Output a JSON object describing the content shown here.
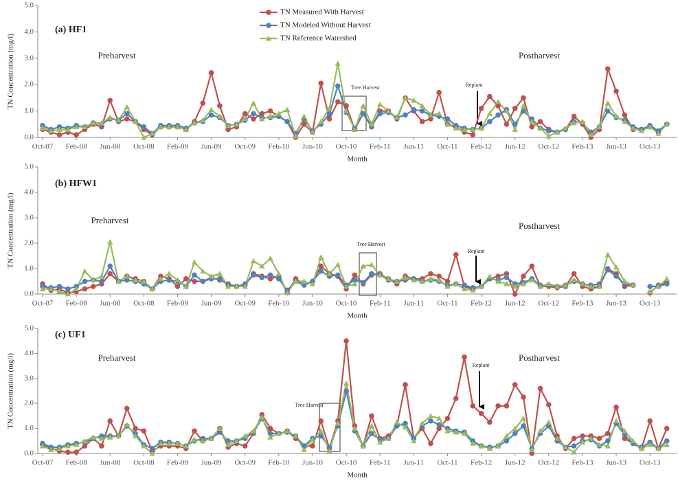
{
  "chart_data": [
    {
      "type": "line",
      "title": "(a) HF1",
      "x_label": "Month",
      "y_label": "TN Concentration (mg/l)",
      "legend": true,
      "annotations": [
        "Preharvest",
        "Postharvest",
        "Tree Harvest",
        "Replant"
      ],
      "ylim": [
        0,
        5
      ],
      "yticks": [
        {
          "value": 0,
          "label": "0.0"
        },
        {
          "value": 1,
          "label": "1.0"
        },
        {
          "value": 2,
          "label": "2.0"
        },
        {
          "value": 3,
          "label": "3.0"
        },
        {
          "value": 4,
          "label": "4.0"
        },
        {
          "value": 5,
          "label": "5.0"
        }
      ],
      "categories": [
        "Oct-07",
        null,
        null,
        null,
        "Feb-08",
        null,
        null,
        null,
        "Jun-08",
        null,
        null,
        null,
        "Oct-08",
        null,
        null,
        null,
        "Feb-09",
        null,
        null,
        null,
        "Jun-09",
        null,
        null,
        null,
        "Oct-09",
        null,
        null,
        null,
        "Feb-10",
        null,
        null,
        null,
        "Jun-10",
        null,
        null,
        null,
        "Oct-10",
        null,
        null,
        null,
        "Feb-11",
        null,
        null,
        null,
        "Jun-11",
        null,
        null,
        null,
        "Oct-11",
        null,
        null,
        null,
        "Feb-12",
        null,
        null,
        null,
        "Jun-12",
        null,
        null,
        null,
        "Oct-12",
        null,
        null,
        null,
        "Feb-13",
        null,
        null,
        null,
        "Jun-13",
        null,
        null,
        null,
        "Oct-13",
        null,
        null
      ],
      "series": [
        {
          "name": "TN Measured With Harvest",
          "color": "#c0504d",
          "marker": "circle",
          "values": [
            0.3,
            0.2,
            0.1,
            0.2,
            0.1,
            0.3,
            0.5,
            0.4,
            1.4,
            0.6,
            0.7,
            0.6,
            0.3,
            0.1,
            0.4,
            0.4,
            0.4,
            0.3,
            0.6,
            1.3,
            2.45,
            1.2,
            0.3,
            0.4,
            0.9,
            0.7,
            0.9,
            1.0,
            0.8,
            0.6,
            0.0,
            0.5,
            0.2,
            2.05,
            0.7,
            1.35,
            1.2,
            0.3,
            0.9,
            0.4,
            1.0,
            1.0,
            0.7,
            1.5,
            1.0,
            0.6,
            0.7,
            1.7,
            0.5,
            0.4,
            0.2,
            0.1,
            1.1,
            1.55,
            1.2,
            0.5,
            1.1,
            1.5,
            0.4,
            0.6,
            0.3,
            0.2,
            0.3,
            0.8,
            0.5,
            0.0,
            0.3,
            2.6,
            1.75,
            0.85,
            0.3,
            0.3,
            0.4,
            0.2,
            0.5
          ]
        },
        {
          "name": "TN Modeled Without Harvest",
          "color": "#4f81bd",
          "marker": "circle",
          "values": [
            0.45,
            0.3,
            0.4,
            0.35,
            0.45,
            0.4,
            0.55,
            0.5,
            0.7,
            0.65,
            0.9,
            0.6,
            0.4,
            0.15,
            0.45,
            0.45,
            0.45,
            0.35,
            0.55,
            0.6,
            0.85,
            0.75,
            0.45,
            0.5,
            0.65,
            0.9,
            0.75,
            0.75,
            0.8,
            0.6,
            0.15,
            0.7,
            0.25,
            0.5,
            0.9,
            1.95,
            0.95,
            0.35,
            0.9,
            0.45,
            0.9,
            0.95,
            0.75,
            0.85,
            1.05,
            1.0,
            0.85,
            0.8,
            0.7,
            0.45,
            0.35,
            0.3,
            0.35,
            0.6,
            0.85,
            1.05,
            0.5,
            1.0,
            0.7,
            0.35,
            0.25,
            0.2,
            0.3,
            0.6,
            0.55,
            0.2,
            0.4,
            1.0,
            0.75,
            0.65,
            0.4,
            0.3,
            0.45,
            0.25,
            0.5
          ]
        },
        {
          "name": "TN Reference Watershed",
          "color": "#9bbb59",
          "marker": "triangle",
          "values": [
            0.35,
            0.25,
            0.3,
            0.3,
            0.4,
            0.4,
            0.55,
            0.55,
            0.75,
            0.65,
            1.15,
            0.6,
            0.0,
            0.15,
            0.4,
            0.4,
            0.4,
            0.3,
            0.55,
            0.65,
            1.05,
            0.8,
            0.45,
            0.5,
            0.7,
            1.3,
            0.7,
            0.8,
            0.9,
            1.05,
            0.05,
            0.8,
            0.2,
            0.6,
            1.1,
            2.8,
            1.0,
            0.3,
            1.2,
            0.5,
            1.25,
            1.0,
            0.75,
            1.5,
            1.4,
            1.2,
            0.85,
            0.9,
            0.5,
            0.35,
            0.3,
            0.3,
            0.35,
            0.9,
            1.35,
            1.0,
            0.3,
            1.2,
            0.6,
            0.35,
            0.05,
            0.2,
            0.35,
            0.55,
            0.6,
            0.1,
            0.4,
            1.3,
            0.8,
            0.6,
            0.35,
            0.25,
            0.4,
            0.15,
            0.5
          ]
        }
      ]
    },
    {
      "type": "line",
      "title": "(b) HFW1",
      "x_label": "Month",
      "y_label": "TN Concentration (mg/l)",
      "legend": false,
      "annotations": [
        "Preharvest",
        "Postharvest",
        "Tree Harvest",
        "Replant"
      ],
      "ylim": [
        0,
        5
      ],
      "yticks": [
        {
          "value": 0,
          "label": "0.0"
        },
        {
          "value": 1,
          "label": "1.0"
        },
        {
          "value": 2,
          "label": "2.0"
        },
        {
          "value": 3,
          "label": "3.0"
        },
        {
          "value": 4,
          "label": "4.0"
        },
        {
          "value": 5,
          "label": "5.0"
        }
      ],
      "categories": [
        "Oct-07",
        null,
        null,
        null,
        "Feb-08",
        null,
        null,
        null,
        "Jun-08",
        null,
        null,
        null,
        "Oct-08",
        null,
        null,
        null,
        "Feb-09",
        null,
        null,
        null,
        "Jun-09",
        null,
        null,
        null,
        "Oct-09",
        null,
        null,
        null,
        "Feb-10",
        null,
        null,
        null,
        "Jun-10",
        null,
        null,
        null,
        "Oct-10",
        null,
        null,
        null,
        "Feb-11",
        null,
        null,
        null,
        "Jun-11",
        null,
        null,
        null,
        "Oct-11",
        null,
        null,
        null,
        "Feb-12",
        null,
        null,
        null,
        "Jun-12",
        null,
        null,
        null,
        "Oct-12",
        null,
        null,
        null,
        "Feb-13",
        null,
        null,
        null,
        "Jun-13",
        null,
        null,
        null,
        "Oct-13",
        null,
        null
      ],
      "series": [
        {
          "color": "#c0504d",
          "marker": "circle",
          "values": [
            0.4,
            0.15,
            0.2,
            0.05,
            0.1,
            0.2,
            0.3,
            0.4,
            0.8,
            0.5,
            0.7,
            0.6,
            0.5,
            0.2,
            0.7,
            0.6,
            0.3,
            0.6,
            0.5,
            0.5,
            0.65,
            0.55,
            0.4,
            0.3,
            0.35,
            0.8,
            0.7,
            0.6,
            0.7,
            0.05,
            0.6,
            0.4,
            0.5,
            1.1,
            0.8,
            0.7,
            0.2,
            0.75,
            0.4,
            0.75,
            0.8,
            0.6,
            0.4,
            0.7,
            0.6,
            0.6,
            0.8,
            0.7,
            0.5,
            1.55,
            0.3,
            0.2,
            0.3,
            0.6,
            0.7,
            0.8,
            0.0,
            0.7,
            1.1,
            0.3,
            0.3,
            0.25,
            0.3,
            0.8,
            0.3,
            0.2,
            0.3,
            1.0,
            0.8,
            0.3,
            0.35,
            null,
            0.05,
            0.35,
            0.45
          ]
        },
        {
          "color": "#4f81bd",
          "marker": "circle",
          "values": [
            0.3,
            0.25,
            0.3,
            0.2,
            0.3,
            0.5,
            0.55,
            0.5,
            1.1,
            0.5,
            0.55,
            0.5,
            0.4,
            0.2,
            0.5,
            0.55,
            0.5,
            0.3,
            0.75,
            0.5,
            0.6,
            0.6,
            0.35,
            0.3,
            0.4,
            0.75,
            0.65,
            0.75,
            0.6,
            0.15,
            0.5,
            0.35,
            0.5,
            0.9,
            0.7,
            0.75,
            0.35,
            0.55,
            0.45,
            0.8,
            0.75,
            0.55,
            0.5,
            0.55,
            0.6,
            0.5,
            0.55,
            0.5,
            0.35,
            0.4,
            0.35,
            0.25,
            0.3,
            0.6,
            0.55,
            0.65,
            0.4,
            0.45,
            0.6,
            0.35,
            0.35,
            0.3,
            0.35,
            0.5,
            0.4,
            0.35,
            0.4,
            0.95,
            0.7,
            0.4,
            0.35,
            null,
            0.3,
            0.3,
            0.4
          ]
        },
        {
          "color": "#9bbb59",
          "marker": "triangle",
          "values": [
            0.2,
            0.2,
            0.1,
            0.0,
            0.2,
            0.9,
            0.55,
            0.7,
            2.05,
            0.5,
            0.7,
            0.55,
            0.5,
            0.2,
            0.6,
            0.8,
            0.55,
            0.3,
            1.25,
            0.9,
            0.7,
            0.8,
            0.3,
            0.3,
            0.3,
            1.3,
            1.1,
            1.4,
            0.8,
            0.05,
            0.5,
            0.5,
            0.4,
            1.45,
            0.8,
            1.15,
            0.3,
            0.4,
            1.1,
            1.15,
            0.75,
            0.6,
            0.5,
            0.65,
            0.55,
            0.5,
            0.6,
            0.55,
            0.3,
            0.4,
            0.2,
            0.15,
            0.3,
            0.7,
            0.5,
            0.4,
            0.3,
            0.4,
            0.55,
            0.3,
            0.4,
            0.3,
            0.35,
            0.55,
            0.4,
            0.3,
            0.3,
            1.55,
            1.05,
            0.5,
            0.35,
            null,
            0.1,
            0.3,
            0.6
          ]
        }
      ]
    },
    {
      "type": "line",
      "title": "(c) UF1",
      "x_label": "Month",
      "y_label": "TN Concentration (mg/l)",
      "legend": false,
      "annotations": [
        "Preharvest",
        "Postharvest",
        "Tree Harvest",
        "Replant"
      ],
      "ylim": [
        0,
        5
      ],
      "yticks": [
        {
          "value": 0,
          "label": "0.0"
        },
        {
          "value": 1,
          "label": "1.0"
        },
        {
          "value": 2,
          "label": "2.0"
        },
        {
          "value": 3,
          "label": "3.0"
        },
        {
          "value": 4,
          "label": "4.0"
        },
        {
          "value": 5,
          "label": "5.0"
        }
      ],
      "categories": [
        "Oct-07",
        null,
        null,
        null,
        "Feb-08",
        null,
        null,
        null,
        "Jun-08",
        null,
        null,
        null,
        "Oct-08",
        null,
        null,
        null,
        "Feb-09",
        null,
        null,
        null,
        "Jun-09",
        null,
        null,
        null,
        "Oct-09",
        null,
        null,
        null,
        "Feb-10",
        null,
        null,
        null,
        "Jun-10",
        null,
        null,
        null,
        "Oct-10",
        null,
        null,
        null,
        "Feb-11",
        null,
        null,
        null,
        "Jun-11",
        null,
        null,
        null,
        "Oct-11",
        null,
        null,
        null,
        "Feb-12",
        null,
        null,
        null,
        "Jun-12",
        null,
        null,
        null,
        "Oct-12",
        null,
        null,
        null,
        "Feb-13",
        null,
        null,
        null,
        "Jun-13",
        null,
        null,
        null,
        "Oct-13",
        null,
        null
      ],
      "series": [
        {
          "color": "#c0504d",
          "marker": "circle",
          "values": [
            0.35,
            0.2,
            0.1,
            0.05,
            0.05,
            0.3,
            0.6,
            0.3,
            1.3,
            0.7,
            1.8,
            1.0,
            0.9,
            0.1,
            0.3,
            0.3,
            0.3,
            0.2,
            0.9,
            0.5,
            0.6,
            1.0,
            0.25,
            0.4,
            0.3,
            0.8,
            1.55,
            1.0,
            0.8,
            0.9,
            0.6,
            0.3,
            0.3,
            1.3,
            0.2,
            1.3,
            4.5,
            1.1,
            0.3,
            1.5,
            0.6,
            0.7,
            1.1,
            2.75,
            0.6,
            1.0,
            0.4,
            1.0,
            1.4,
            2.2,
            3.85,
            1.9,
            1.6,
            1.25,
            1.9,
            1.9,
            2.75,
            2.25,
            0.0,
            2.6,
            1.95,
            0.7,
            0.2,
            0.6,
            0.7,
            0.7,
            0.6,
            0.8,
            1.85,
            0.6,
            0.4,
            0.2,
            1.3,
            0.2,
            1.0
          ]
        },
        {
          "color": "#4f81bd",
          "marker": "circle",
          "values": [
            0.4,
            0.25,
            0.25,
            0.35,
            0.4,
            0.45,
            0.6,
            0.7,
            0.7,
            0.7,
            1.1,
            0.8,
            0.35,
            0.2,
            0.45,
            0.45,
            0.4,
            0.3,
            0.5,
            0.6,
            0.6,
            0.85,
            0.5,
            0.5,
            0.6,
            0.85,
            1.4,
            0.8,
            0.8,
            0.85,
            0.7,
            0.3,
            0.6,
            0.7,
            0.25,
            1.1,
            2.5,
            0.9,
            0.3,
            0.8,
            0.55,
            0.6,
            1.1,
            1.2,
            0.6,
            1.1,
            1.3,
            1.15,
            1.0,
            0.9,
            0.85,
            0.5,
            0.3,
            0.25,
            0.3,
            0.5,
            0.8,
            1.1,
            0.2,
            0.8,
            1.1,
            0.5,
            0.25,
            0.3,
            0.5,
            0.55,
            0.3,
            0.5,
            1.2,
            0.75,
            0.4,
            0.25,
            0.45,
            0.2,
            0.5
          ]
        },
        {
          "color": "#9bbb59",
          "marker": "triangle",
          "values": [
            0.3,
            0.15,
            0.2,
            0.3,
            0.35,
            0.5,
            0.65,
            0.6,
            0.65,
            0.7,
            1.15,
            0.7,
            0.3,
            0.0,
            0.4,
            0.4,
            0.4,
            0.3,
            0.55,
            0.5,
            0.6,
            1.0,
            0.35,
            0.5,
            0.7,
            0.9,
            1.45,
            0.65,
            0.8,
            0.9,
            0.7,
            0.15,
            0.55,
            0.9,
            0.1,
            1.2,
            2.8,
            1.0,
            0.3,
            1.1,
            0.45,
            0.6,
            1.25,
            1.05,
            0.5,
            1.2,
            1.5,
            1.4,
            0.9,
            0.85,
            0.8,
            0.4,
            0.3,
            0.2,
            0.3,
            0.7,
            1.0,
            1.4,
            0.15,
            0.9,
            1.25,
            0.6,
            0.25,
            0.05,
            0.45,
            0.6,
            0.35,
            0.3,
            1.3,
            0.9,
            0.5,
            0.2,
            0.35,
            0.2,
            0.35
          ]
        }
      ]
    }
  ]
}
